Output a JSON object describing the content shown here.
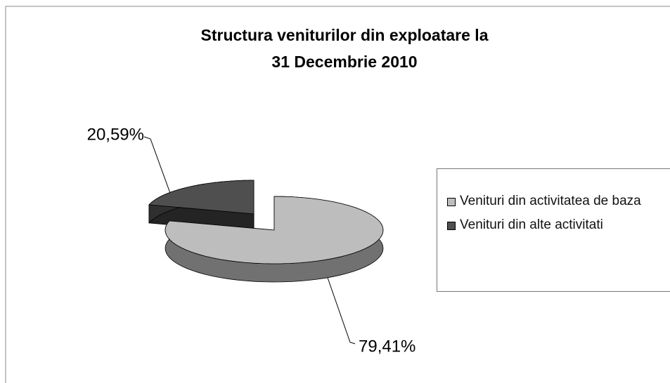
{
  "chart_data": {
    "type": "pie3d",
    "title": [
      "Structura veniturilor din exploatare la",
      "31 Decembrie 2010"
    ],
    "categories": [
      "Venituri din activitatea de baza",
      "Venituri din alte activitati"
    ],
    "values": [
      79.41,
      20.59
    ],
    "value_labels": [
      "79,41%",
      "20,59%"
    ],
    "colors": [
      "#bdbdbd",
      "#4f4f4f"
    ],
    "legend": "right"
  }
}
